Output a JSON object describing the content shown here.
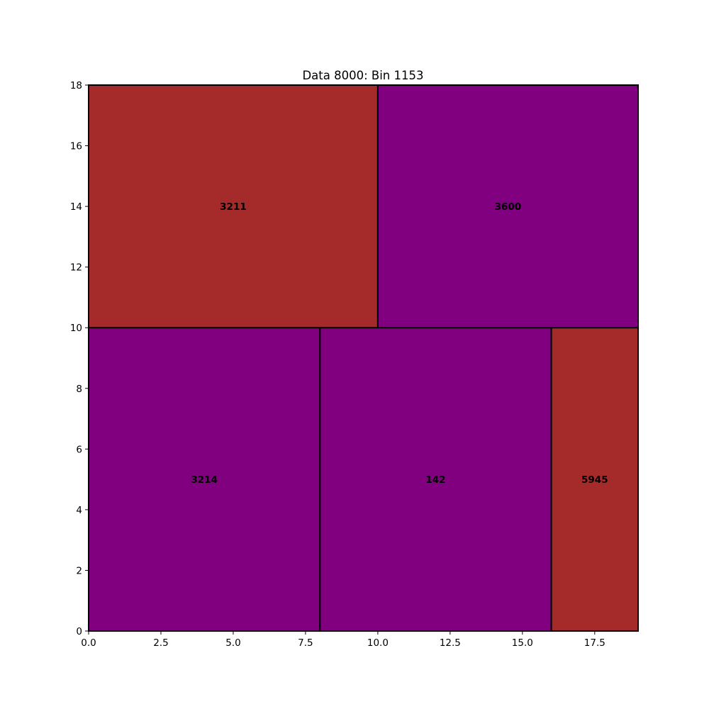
{
  "chart_data": {
    "type": "treemap",
    "title": "Data 8000: Bin 1153",
    "xlabel": "",
    "ylabel": "",
    "xlim": [
      0,
      19
    ],
    "ylim": [
      0,
      18
    ],
    "xticks": [
      0.0,
      2.5,
      5.0,
      7.5,
      10.0,
      12.5,
      15.0,
      17.5
    ],
    "xtick_labels": [
      "0.0",
      "2.5",
      "5.0",
      "7.5",
      "10.0",
      "12.5",
      "15.0",
      "17.5"
    ],
    "yticks": [
      0,
      2,
      4,
      6,
      8,
      10,
      12,
      14,
      16,
      18
    ],
    "ytick_labels": [
      "0",
      "2",
      "4",
      "6",
      "8",
      "10",
      "12",
      "14",
      "16",
      "18"
    ],
    "grid": false,
    "rectangles": [
      {
        "label": "3211",
        "x": 0,
        "y": 10,
        "width": 10,
        "height": 8,
        "color": "#a52a2a"
      },
      {
        "label": "3600",
        "x": 10,
        "y": 10,
        "width": 9,
        "height": 8,
        "color": "#800080"
      },
      {
        "label": "3214",
        "x": 0,
        "y": 0,
        "width": 8,
        "height": 10,
        "color": "#800080"
      },
      {
        "label": "142",
        "x": 8,
        "y": 0,
        "width": 8,
        "height": 10,
        "color": "#800080"
      },
      {
        "label": "5945",
        "x": 16,
        "y": 0,
        "width": 3,
        "height": 10,
        "color": "#a52a2a"
      }
    ]
  }
}
